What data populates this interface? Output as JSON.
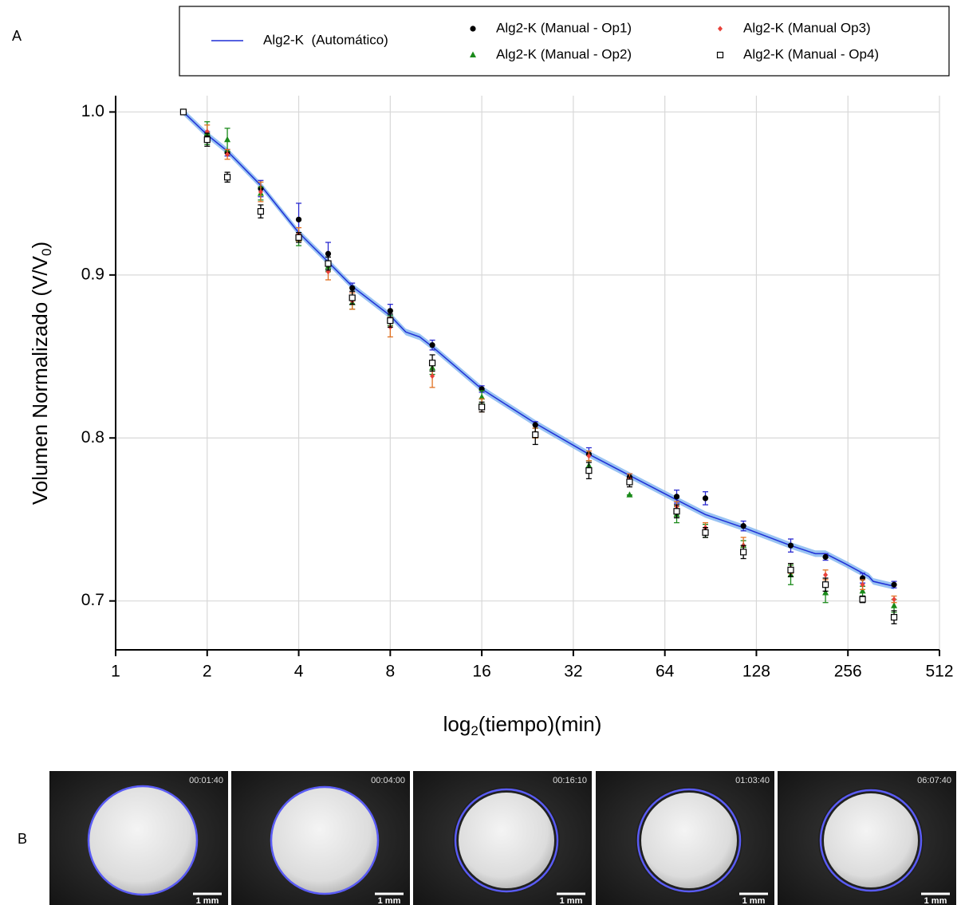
{
  "chart_data": {
    "type": "scatter",
    "xlabel": [
      "log",
      "2",
      "(tiempo)(min)"
    ],
    "ylabel": [
      "Volumen Normalizado (V/V",
      "0",
      ")"
    ],
    "xscale": "log2",
    "grid": true,
    "legend": "top",
    "xlim": [
      1,
      512
    ],
    "xticks": [
      1,
      2,
      4,
      8,
      16,
      32,
      64,
      128,
      256,
      512
    ],
    "ylim": [
      0.67,
      1.01
    ],
    "yticks": [
      0.7,
      0.8,
      0.9,
      {
        "value": 1,
        "label": "1.0"
      }
    ],
    "line": {
      "name": "Alg2-K  (Automático)",
      "color": "#1f2fd6",
      "band_color": "#7fb4f0",
      "band": 0.002,
      "x": [
        1.67,
        2,
        2.33,
        3,
        4,
        5,
        6,
        8,
        9,
        10,
        11,
        16,
        24,
        36,
        49,
        70,
        87,
        116,
        166,
        200,
        216,
        250,
        300,
        310,
        363
      ],
      "values": [
        1.0,
        0.986,
        0.976,
        0.955,
        0.926,
        0.908,
        0.893,
        0.875,
        0.865,
        0.862,
        0.856,
        0.83,
        0.809,
        0.79,
        0.777,
        0.762,
        0.753,
        0.745,
        0.734,
        0.729,
        0.729,
        0.723,
        0.715,
        0.712,
        0.709
      ]
    },
    "x": [
      1.67,
      2,
      2.33,
      3,
      4,
      5,
      6,
      8,
      11,
      16,
      24,
      36,
      49,
      70,
      87,
      116,
      166,
      216,
      286,
      363
    ],
    "series": [
      {
        "name": "Alg2-K (Manual - Op1)",
        "color": "#000000",
        "error_color": "#2a2ad0",
        "marker": "circle",
        "values": [
          1.0,
          0.985,
          0.975,
          0.953,
          0.934,
          0.913,
          0.892,
          0.878,
          0.857,
          0.83,
          0.808,
          0.79,
          0.776,
          0.764,
          0.763,
          0.746,
          0.734,
          0.727,
          0.714,
          0.71
        ],
        "errors": [
          0,
          0.003,
          0.002,
          0.005,
          0.01,
          0.007,
          0.003,
          0.004,
          0.003,
          0.002,
          0.002,
          0.004,
          0.002,
          0.004,
          0.004,
          0.003,
          0.004,
          0.002,
          0.003,
          0.002
        ]
      },
      {
        "name": "Alg2-K (Manual - Op2)",
        "color": "#1a8a1a",
        "error_color": "#1a8a1a",
        "marker": "triangle",
        "values": [
          1.0,
          0.987,
          0.983,
          0.95,
          0.922,
          0.905,
          0.883,
          0.872,
          0.843,
          0.825,
          0.803,
          0.783,
          0.765,
          0.753,
          0.743,
          0.734,
          0.716,
          0.705,
          0.706,
          0.697
        ],
        "errors": [
          0,
          0.007,
          0.007,
          0.004,
          0.004,
          0.003,
          0.004,
          0.003,
          0.004,
          0.004,
          0.003,
          0.003,
          0,
          0.005,
          0.004,
          0.003,
          0.006,
          0.006,
          0.003,
          0.004
        ]
      },
      {
        "name": "Alg2-K (Manual Op3)",
        "color": "#e8413a",
        "error_color": "#e07020",
        "marker": "diamond",
        "values": [
          1.0,
          0.988,
          0.974,
          0.951,
          0.925,
          0.902,
          0.884,
          0.868,
          0.838,
          0.82,
          0.803,
          0.789,
          0.775,
          0.758,
          0.745,
          0.734,
          0.72,
          0.716,
          0.71,
          0.701
        ],
        "errors": [
          0,
          0.004,
          0.003,
          0.006,
          0.004,
          0.005,
          0.005,
          0.006,
          0.007,
          0.004,
          0.003,
          0.003,
          0.003,
          0.003,
          0.003,
          0.005,
          0.003,
          0.003,
          0.003,
          0.002
        ]
      },
      {
        "name": "Alg2-K (Manual - Op4)",
        "color": "#000000",
        "error_color": "#000000",
        "marker": "square",
        "values": [
          1.0,
          0.983,
          0.96,
          0.939,
          0.923,
          0.907,
          0.886,
          0.872,
          0.846,
          0.819,
          0.802,
          0.78,
          0.773,
          0.755,
          0.742,
          0.73,
          0.719,
          0.71,
          0.701,
          0.69
        ],
        "errors": [
          0,
          0.004,
          0.003,
          0.004,
          0.003,
          0.004,
          0.004,
          0.004,
          0.005,
          0.003,
          0.006,
          0.005,
          0.003,
          0.004,
          0.003,
          0.004,
          0.004,
          0.004,
          0.002,
          0.004
        ]
      }
    ]
  },
  "panel_labels": [
    "A",
    "B"
  ],
  "images": {
    "scale_label": "1 mm",
    "frames": [
      "00:01:40",
      "00:04:00",
      "00:16:10",
      "01:03:40",
      "06:07:40"
    ]
  }
}
